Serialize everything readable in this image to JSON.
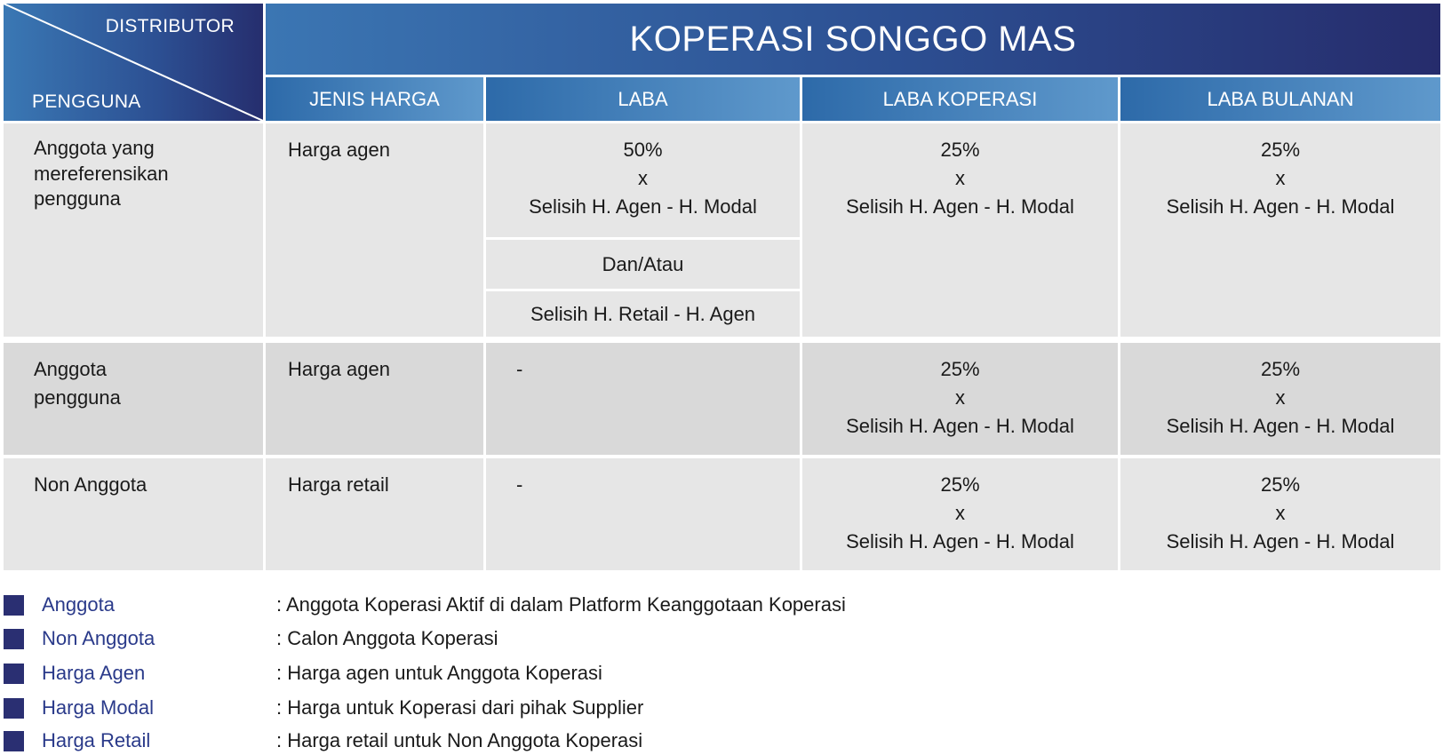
{
  "header": {
    "corner_top": "DISTRIBUTOR",
    "corner_bottom": "PENGGUNA",
    "title": "KOPERASI SONGGO MAS",
    "columns": [
      "JENIS HARGA",
      "LABA",
      "LABA KOPERASI",
      "LABA BULANAN"
    ]
  },
  "rows": [
    {
      "pengguna": "Anggota yang mereferensikan pengguna",
      "jenis_harga": "Harga agen",
      "laba": {
        "top": [
          "50%",
          "x",
          "Selisih H. Agen - H. Modal"
        ],
        "middle": "Dan/Atau",
        "bottom": "Selisih H. Retail - H. Agen"
      },
      "laba_koperasi": [
        "25%",
        "x",
        "Selisih H. Agen - H. Modal"
      ],
      "laba_bulanan": [
        "25%",
        "x",
        "Selisih H. Agen - H. Modal"
      ]
    },
    {
      "pengguna": "Anggota pengguna",
      "jenis_harga": "Harga agen",
      "laba": "-",
      "laba_koperasi": [
        "25%",
        "x",
        "Selisih H. Agen - H. Modal"
      ],
      "laba_bulanan": [
        "25%",
        "x",
        "Selisih H. Agen - H. Modal"
      ]
    },
    {
      "pengguna": "Non Anggota",
      "jenis_harga": "Harga retail",
      "laba": "-",
      "laba_koperasi": [
        "25%",
        "x",
        "Selisih H. Agen - H. Modal"
      ],
      "laba_bulanan": [
        "25%",
        "x",
        "Selisih H. Agen - H. Modal"
      ]
    }
  ],
  "legend": [
    {
      "term": "Anggota",
      "definition": ": Anggota Koperasi Aktif di dalam Platform Keanggotaan Koperasi"
    },
    {
      "term": "Non Anggota",
      "definition": ": Calon Anggota Koperasi"
    },
    {
      "term": "Harga Agen",
      "definition": ": Harga agen untuk Anggota Koperasi"
    },
    {
      "term": "Harga Modal",
      "definition": ": Harga untuk Koperasi dari pihak Supplier"
    },
    {
      "term": "Harga Retail",
      "definition": ": Harga retail untuk Non Anggota Koperasi"
    }
  ],
  "colors": {
    "header_dark": "#262e6e",
    "header_light": "#3a78b4",
    "cell_light": "#e6e6e6",
    "cell_dark": "#d9d9d9",
    "legend_square": "#2a2f72",
    "legend_term": "#2a3a8a"
  }
}
